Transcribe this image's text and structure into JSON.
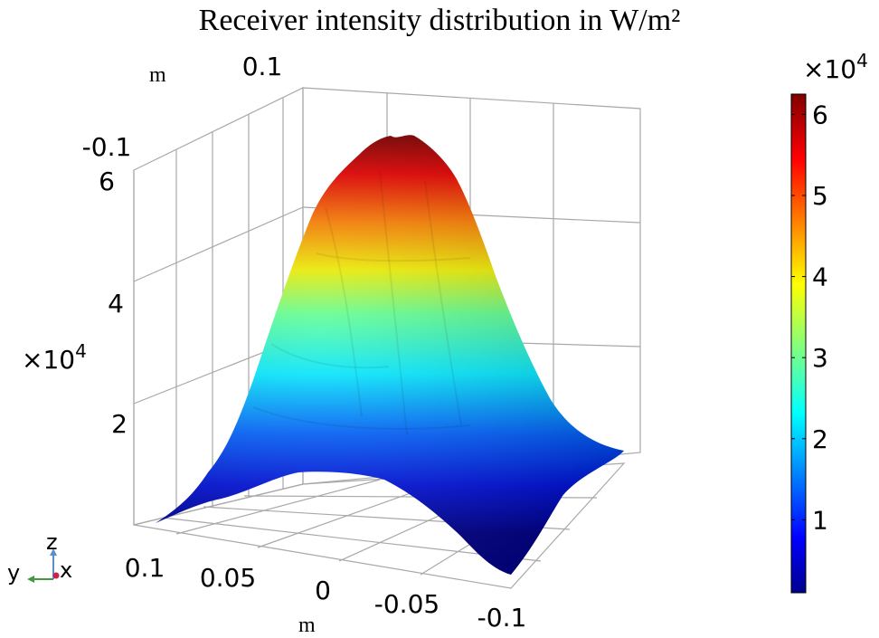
{
  "chart_data": {
    "type": "surface3d",
    "title": "Receiver intensity distribution in W/m²",
    "colormap": "jet",
    "x_axis": {
      "unit": "m",
      "range": [
        -0.1,
        0.1
      ],
      "tick_labels": [
        "0.1",
        "0.05",
        "0",
        "-0.05",
        "-0.1"
      ]
    },
    "y_axis": {
      "unit": "m",
      "range": [
        -0.1,
        0.1
      ],
      "tick_labels": [
        "0.1",
        "-0.1"
      ]
    },
    "z_axis": {
      "multiplier": "×10",
      "exponent": "4",
      "range": [
        0,
        62000
      ],
      "tick_labels": [
        "2",
        "4",
        "6"
      ]
    },
    "colorbar": {
      "multiplier": "×10",
      "exponent": "4",
      "min": 1000,
      "max": 62500,
      "tick_labels": [
        "1",
        "2",
        "3",
        "4",
        "5",
        "6"
      ],
      "tick_values": [
        1,
        2,
        3,
        4,
        5,
        6
      ]
    },
    "surface": {
      "peak_value": 62000,
      "peak_location": [
        0,
        0
      ],
      "edge_value": 1500,
      "shape": "gaussian-like peak centered on the receiver"
    },
    "grid": true
  },
  "triad": {
    "z": "z",
    "y": "y",
    "x": "x"
  }
}
